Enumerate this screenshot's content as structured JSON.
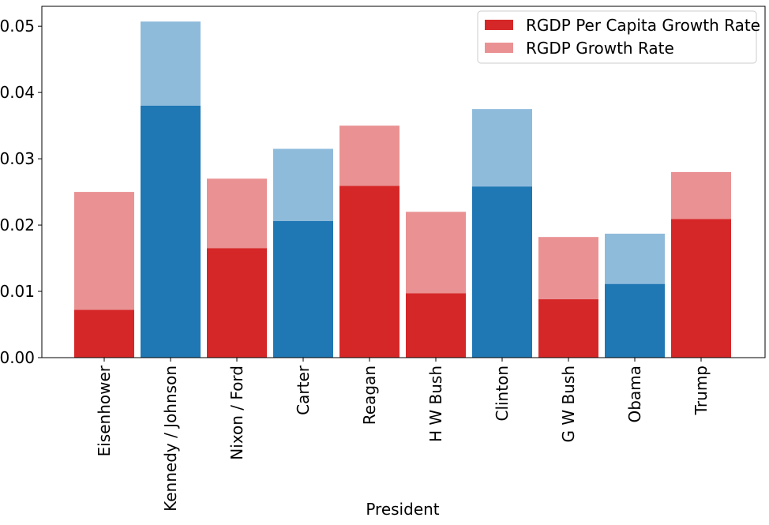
{
  "chart_data": {
    "type": "bar",
    "xlabel": "President",
    "ylabel": "",
    "ylim": [
      0,
      0.053
    ],
    "y_ticks": [
      "0.00",
      "0.01",
      "0.02",
      "0.03",
      "0.04",
      "0.05"
    ],
    "grid": false,
    "legend_position": "top-right",
    "categories": [
      "Eisenhower",
      "Kennedy / Johnson",
      "Nixon / Ford",
      "Carter",
      "Reagan",
      "H W Bush",
      "Clinton",
      "G W Bush",
      "Obama",
      "Trump"
    ],
    "party": [
      "R",
      "D",
      "R",
      "D",
      "R",
      "R",
      "D",
      "R",
      "D",
      "R"
    ],
    "series": [
      {
        "name": "RGDP Per Capita Growth Rate",
        "values": [
          0.0072,
          0.038,
          0.0165,
          0.0206,
          0.0259,
          0.0097,
          0.0258,
          0.0088,
          0.0111,
          0.0209
        ]
      },
      {
        "name": "RGDP Growth Rate",
        "values": [
          0.025,
          0.0507,
          0.027,
          0.0315,
          0.035,
          0.022,
          0.0375,
          0.0182,
          0.0187,
          0.028
        ]
      }
    ],
    "colors": {
      "R_dark": "#d62728",
      "R_light": "#ea9293",
      "D_dark": "#1f77b4",
      "D_light": "#8fbbdb"
    }
  }
}
